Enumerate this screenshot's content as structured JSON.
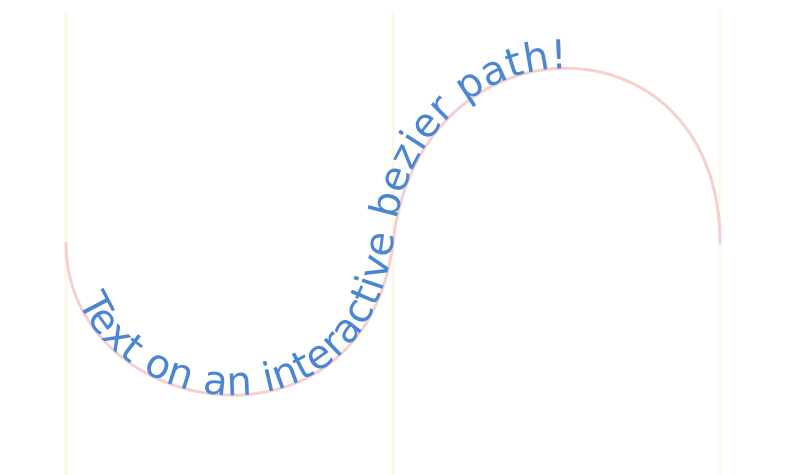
{
  "path_text": "Text on an interactive bezier path!",
  "colors": {
    "text": "#4a86d4",
    "curve": "#f6cfcf",
    "guide": "#fbf8e6",
    "background": "#ffffff"
  }
}
